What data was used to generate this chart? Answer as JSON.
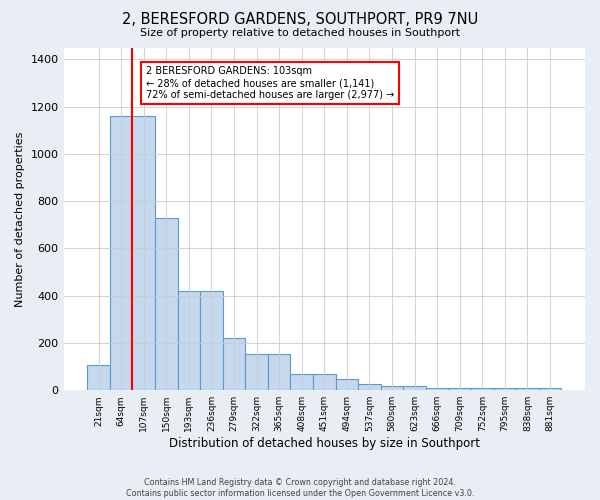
{
  "title": "2, BERESFORD GARDENS, SOUTHPORT, PR9 7NU",
  "subtitle": "Size of property relative to detached houses in Southport",
  "xlabel": "Distribution of detached houses by size in Southport",
  "ylabel": "Number of detached properties",
  "bar_labels": [
    "21sqm",
    "64sqm",
    "107sqm",
    "150sqm",
    "193sqm",
    "236sqm",
    "279sqm",
    "322sqm",
    "365sqm",
    "408sqm",
    "451sqm",
    "494sqm",
    "537sqm",
    "580sqm",
    "623sqm",
    "666sqm",
    "709sqm",
    "752sqm",
    "795sqm",
    "838sqm",
    "881sqm"
  ],
  "bar_values": [
    107,
    1160,
    1160,
    730,
    420,
    420,
    220,
    155,
    155,
    70,
    70,
    47,
    27,
    17,
    17,
    10,
    10,
    10,
    10,
    10,
    10
  ],
  "bar_color": "#c5d8ed",
  "bar_edge_color": "#5b9bd5",
  "red_line_index": 2,
  "annotation_text": "2 BERESFORD GARDENS: 103sqm\n← 28% of detached houses are smaller (1,141)\n72% of semi-detached houses are larger (2,977) →",
  "annotation_box_color": "white",
  "annotation_box_edge": "red",
  "ylim": [
    0,
    1450
  ],
  "yticks": [
    0,
    200,
    400,
    600,
    800,
    1000,
    1200,
    1400
  ],
  "footer_line1": "Contains HM Land Registry data © Crown copyright and database right 2024.",
  "footer_line2": "Contains public sector information licensed under the Open Government Licence v3.0.",
  "background_color": "#e8eef4",
  "plot_background_color": "white",
  "grid_color": "#cccccc"
}
